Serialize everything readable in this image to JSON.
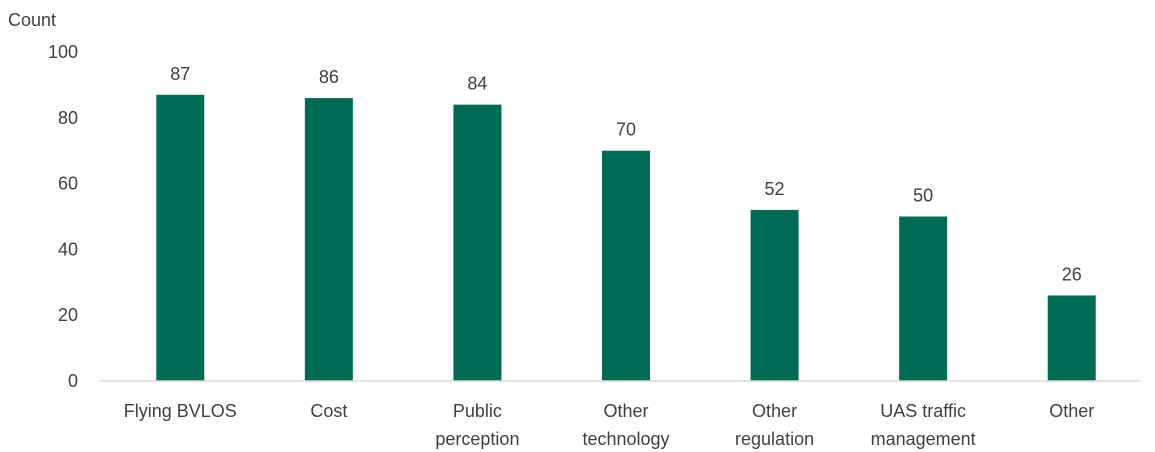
{
  "chart_data": {
    "type": "bar",
    "ylabel": "Count",
    "ylim": [
      0,
      100
    ],
    "yticks": [
      0,
      20,
      40,
      60,
      80,
      100
    ],
    "categories": [
      [
        "Flying BVLOS"
      ],
      [
        "Cost"
      ],
      [
        "Public",
        "perception"
      ],
      [
        "Other",
        "technology"
      ],
      [
        "Other",
        "regulation"
      ],
      [
        "UAS traffic",
        "management"
      ],
      [
        "Other"
      ]
    ],
    "values": [
      87,
      86,
      84,
      70,
      52,
      50,
      26
    ],
    "data_labels": [
      "87",
      "86",
      "84",
      "70",
      "52",
      "50",
      "26"
    ],
    "grid": false,
    "legend": "none",
    "bar_color": "#006B54",
    "axis_color": "#D9D9D9",
    "text_color": "#404040"
  }
}
